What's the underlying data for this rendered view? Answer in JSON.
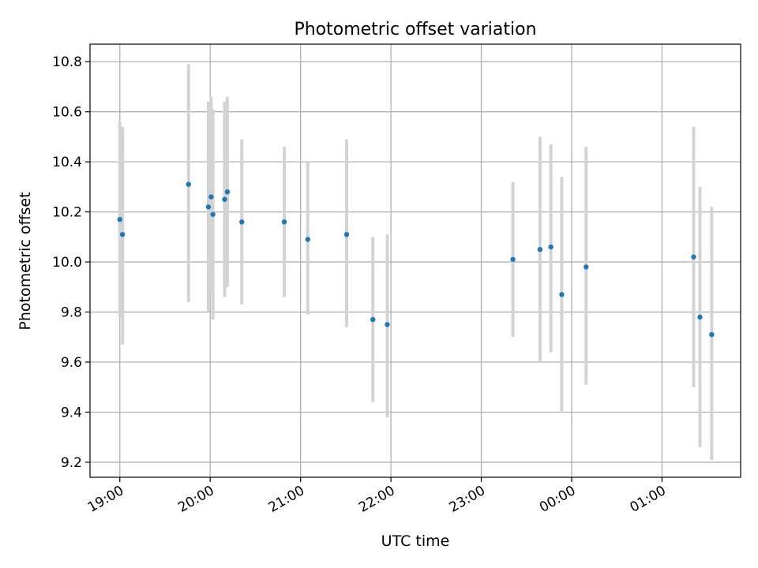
{
  "chart_data": {
    "type": "scatter",
    "title": "Photometric offset variation",
    "xlabel": "UTC time",
    "ylabel": "Photometric offset",
    "xlim": [
      -0.33,
      6.87
    ],
    "ylim": [
      9.14,
      10.87
    ],
    "grid": true,
    "x_ticks": [
      {
        "value": 0,
        "label": "19:00"
      },
      {
        "value": 1,
        "label": "20:00"
      },
      {
        "value": 2,
        "label": "21:00"
      },
      {
        "value": 3,
        "label": "22:00"
      },
      {
        "value": 4,
        "label": "23:00"
      },
      {
        "value": 5,
        "label": "00:00"
      },
      {
        "value": 6,
        "label": "01:00"
      }
    ],
    "y_ticks": [
      {
        "value": 9.2,
        "label": "9.2"
      },
      {
        "value": 9.4,
        "label": "9.4"
      },
      {
        "value": 9.6,
        "label": "9.6"
      },
      {
        "value": 9.8,
        "label": "9.8"
      },
      {
        "value": 10.0,
        "label": "10.0"
      },
      {
        "value": 10.2,
        "label": "10.2"
      },
      {
        "value": 10.4,
        "label": "10.4"
      },
      {
        "value": 10.6,
        "label": "10.6"
      },
      {
        "value": 10.8,
        "label": "10.8"
      }
    ],
    "x_unit": "hours since 19:00 UTC",
    "points": [
      {
        "x": 0.0,
        "y": 10.17,
        "lo": 9.78,
        "hi": 10.56
      },
      {
        "x": 0.03,
        "y": 10.11,
        "lo": 9.67,
        "hi": 10.54
      },
      {
        "x": 0.76,
        "y": 10.31,
        "lo": 9.84,
        "hi": 10.79
      },
      {
        "x": 0.98,
        "y": 10.22,
        "lo": 9.8,
        "hi": 10.64
      },
      {
        "x": 1.01,
        "y": 10.26,
        "lo": 9.87,
        "hi": 10.66
      },
      {
        "x": 1.03,
        "y": 10.19,
        "lo": 9.77,
        "hi": 10.61
      },
      {
        "x": 1.16,
        "y": 10.25,
        "lo": 9.86,
        "hi": 10.64
      },
      {
        "x": 1.19,
        "y": 10.28,
        "lo": 9.9,
        "hi": 10.66
      },
      {
        "x": 1.35,
        "y": 10.16,
        "lo": 9.83,
        "hi": 10.49
      },
      {
        "x": 1.82,
        "y": 10.16,
        "lo": 9.86,
        "hi": 10.46
      },
      {
        "x": 2.08,
        "y": 10.09,
        "lo": 9.79,
        "hi": 10.4
      },
      {
        "x": 2.51,
        "y": 10.11,
        "lo": 9.74,
        "hi": 10.49
      },
      {
        "x": 2.8,
        "y": 9.77,
        "lo": 9.44,
        "hi": 10.1
      },
      {
        "x": 2.96,
        "y": 9.75,
        "lo": 9.38,
        "hi": 10.11
      },
      {
        "x": 4.35,
        "y": 10.01,
        "lo": 9.7,
        "hi": 10.32
      },
      {
        "x": 4.65,
        "y": 10.05,
        "lo": 9.6,
        "hi": 10.5
      },
      {
        "x": 4.77,
        "y": 10.06,
        "lo": 9.64,
        "hi": 10.47
      },
      {
        "x": 4.89,
        "y": 9.87,
        "lo": 9.4,
        "hi": 10.34
      },
      {
        "x": 5.16,
        "y": 9.98,
        "lo": 9.51,
        "hi": 10.46
      },
      {
        "x": 6.35,
        "y": 10.02,
        "lo": 9.5,
        "hi": 10.54
      },
      {
        "x": 6.42,
        "y": 9.78,
        "lo": 9.26,
        "hi": 10.3
      },
      {
        "x": 6.55,
        "y": 9.71,
        "lo": 9.21,
        "hi": 10.22
      }
    ],
    "colors": {
      "point": "#1f77b4",
      "errorbar": "#d3d3d3",
      "grid": "#b0b0b0",
      "axis": "#000000"
    }
  }
}
